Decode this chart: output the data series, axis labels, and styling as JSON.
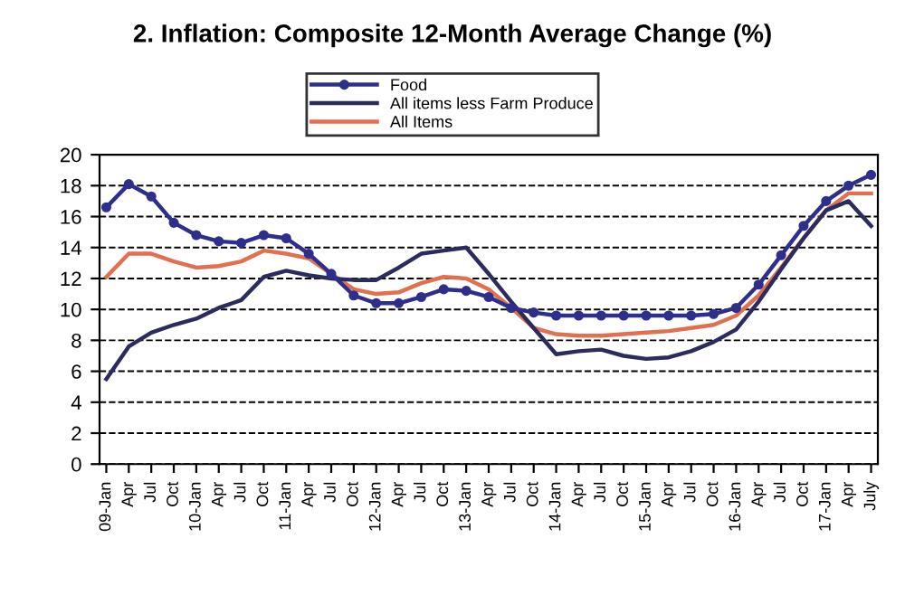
{
  "chart_data": {
    "type": "line",
    "title": "2. Inflation: Composite 12-Month Average Change (%)",
    "categories": [
      "09-Jan",
      "Apr",
      "Jul",
      "Oct",
      "10-Jan",
      "Apr",
      "Jul",
      "Oct",
      "11-Jan",
      "Apr",
      "Jul",
      "Oct",
      "12-Jan",
      "Apr",
      "Jul",
      "Oct",
      "13-Jan",
      "Apr",
      "Jul",
      "Oct",
      "14-Jan",
      "Apr",
      "Jul",
      "Oct",
      "15-Jan",
      "Apr",
      "Jul",
      "Oct",
      "16-Jan",
      "Apr",
      "Jul",
      "Oct",
      "17-Jan",
      "Apr",
      "July"
    ],
    "series": [
      {
        "name": "Food",
        "color": "#2e2e8c",
        "marker": "circle",
        "values": [
          16.6,
          18.1,
          17.3,
          15.6,
          14.8,
          14.4,
          14.3,
          14.8,
          14.6,
          13.6,
          12.3,
          10.9,
          10.4,
          10.4,
          10.8,
          11.3,
          11.2,
          10.8,
          10.1,
          9.8,
          9.6,
          9.6,
          9.6,
          9.6,
          9.6,
          9.6,
          9.6,
          9.7,
          10.1,
          11.6,
          13.5,
          15.4,
          17.0,
          18.0,
          18.7
        ]
      },
      {
        "name": "All items less Farm Produce",
        "color": "#2b2b5e",
        "values": [
          5.5,
          7.6,
          8.5,
          9.0,
          9.4,
          10.1,
          10.6,
          12.1,
          12.5,
          12.2,
          12.0,
          11.9,
          11.9,
          12.7,
          13.6,
          13.8,
          14.0,
          12.3,
          10.5,
          8.8,
          7.1,
          7.3,
          7.4,
          7.0,
          6.8,
          6.9,
          7.3,
          7.9,
          8.7,
          10.5,
          12.6,
          14.6,
          16.4,
          17.0,
          15.4
        ]
      },
      {
        "name": "All Items",
        "color": "#e07050",
        "values": [
          12.1,
          13.6,
          13.6,
          13.1,
          12.7,
          12.8,
          13.1,
          13.8,
          13.6,
          13.3,
          12.3,
          11.3,
          11.0,
          11.1,
          11.7,
          12.1,
          12.0,
          11.3,
          10.1,
          8.8,
          8.4,
          8.3,
          8.3,
          8.4,
          8.5,
          8.6,
          8.8,
          9.0,
          9.6,
          10.9,
          12.7,
          14.6,
          16.4,
          17.5,
          17.5
        ]
      }
    ],
    "ylim": [
      0,
      20
    ],
    "yticks": [
      0,
      2,
      4,
      6,
      8,
      10,
      12,
      14,
      16,
      18,
      20
    ],
    "grid": "y",
    "legend": "top"
  }
}
